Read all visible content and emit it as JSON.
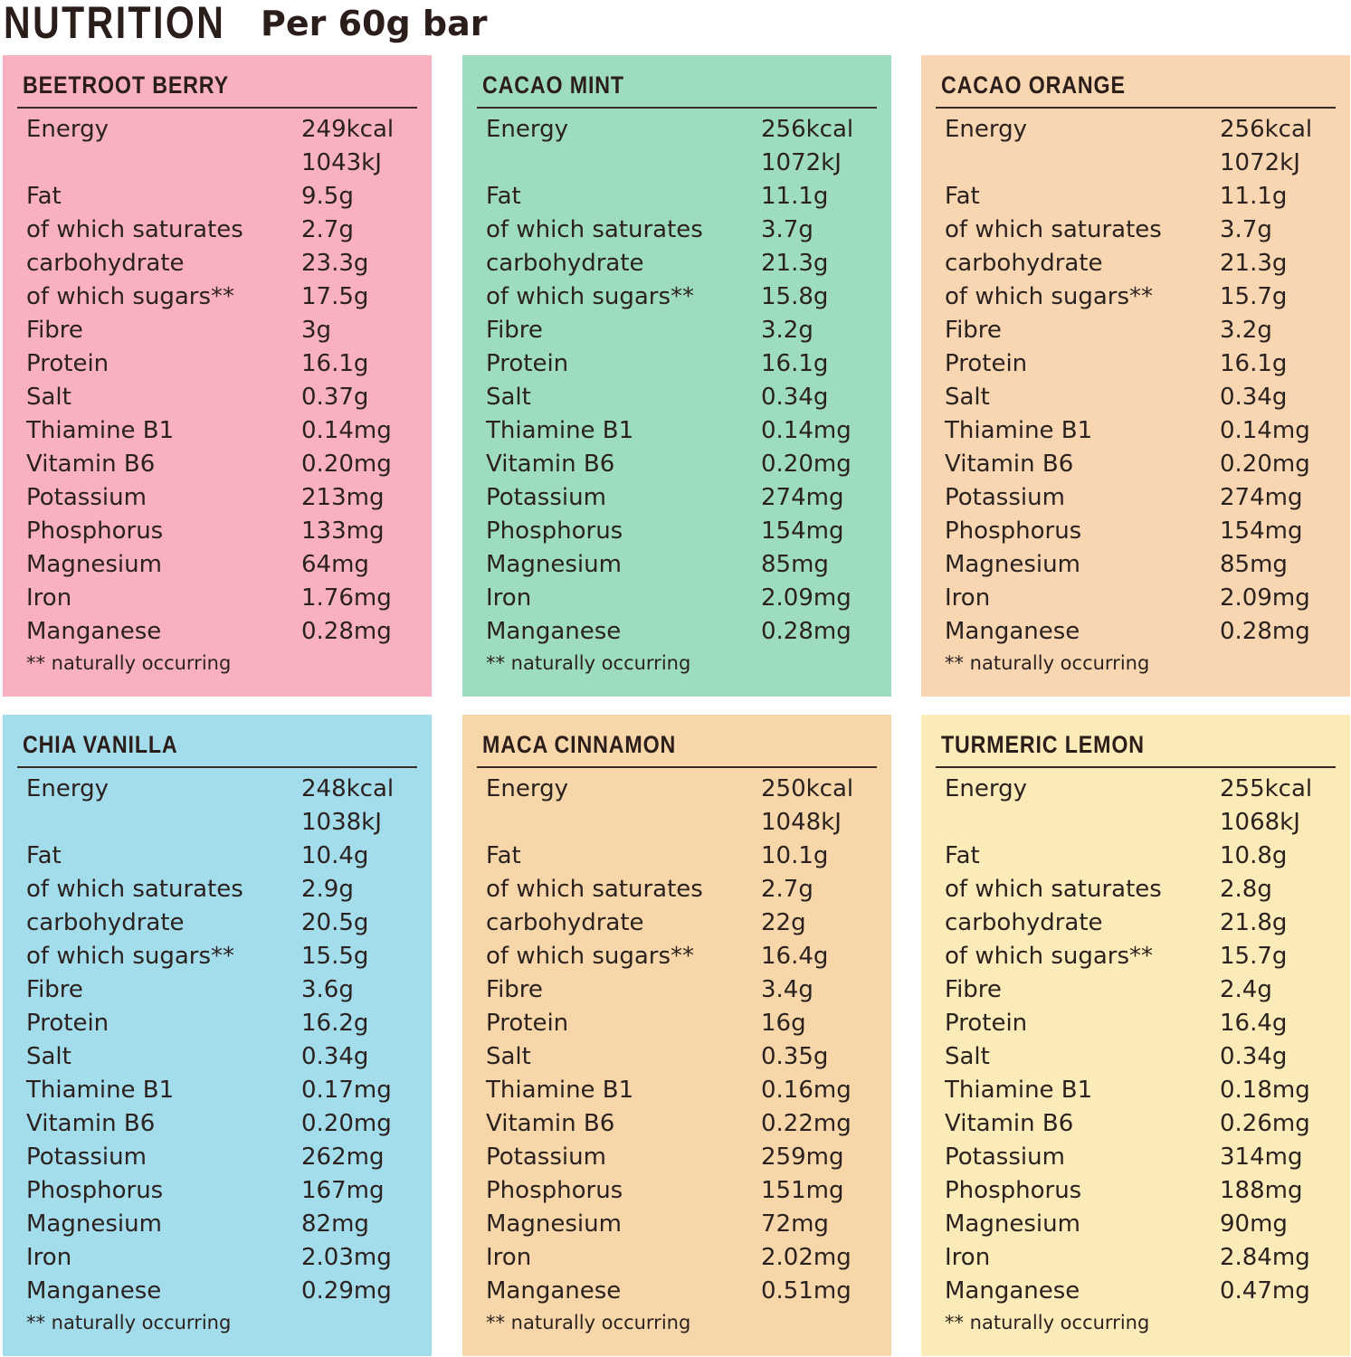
{
  "header": {
    "title": "NUTRITION",
    "subtitle": "Per 60g bar"
  },
  "panels": [
    {
      "name": "BEETROOT BERRY",
      "color": "#f9b1c0",
      "energy_kcal": "249kcal",
      "energy_kj": "1043kJ",
      "rows": [
        {
          "label": "Fat",
          "value": "9.5g"
        },
        {
          "label": "of which saturates",
          "value": "2.7g"
        },
        {
          "label": "carbohydrate",
          "value": "23.3g"
        },
        {
          "label": "of which sugars**",
          "value": "17.5g"
        },
        {
          "label": "Fibre",
          "value": "3g"
        },
        {
          "label": "Protein",
          "value": "16.1g"
        },
        {
          "label": "Salt",
          "value": "0.37g"
        },
        {
          "label": "Thiamine B1",
          "value": "0.14mg"
        },
        {
          "label": "Vitamin B6",
          "value": "0.20mg"
        },
        {
          "label": "Potassium",
          "value": "213mg"
        },
        {
          "label": "Phosphorus",
          "value": "133mg"
        },
        {
          "label": "Magnesium",
          "value": "64mg"
        },
        {
          "label": "Iron",
          "value": "1.76mg"
        },
        {
          "label": "Manganese",
          "value": "0.28mg"
        }
      ],
      "note": "** naturally occurring"
    },
    {
      "name": "CACAO MINT",
      "color": "#9edcc0",
      "energy_kcal": "256kcal",
      "energy_kj": "1072kJ",
      "rows": [
        {
          "label": "Fat",
          "value": "11.1g"
        },
        {
          "label": "of which saturates",
          "value": "3.7g"
        },
        {
          "label": "carbohydrate",
          "value": "21.3g"
        },
        {
          "label": "of which sugars**",
          "value": "15.8g"
        },
        {
          "label": "Fibre",
          "value": "3.2g"
        },
        {
          "label": "Protein",
          "value": "16.1g"
        },
        {
          "label": "Salt",
          "value": "0.34g"
        },
        {
          "label": "Thiamine B1",
          "value": "0.14mg"
        },
        {
          "label": "Vitamin B6",
          "value": "0.20mg"
        },
        {
          "label": "Potassium",
          "value": "274mg"
        },
        {
          "label": "Phosphorus",
          "value": "154mg"
        },
        {
          "label": "Magnesium",
          "value": "85mg"
        },
        {
          "label": "Iron",
          "value": "2.09mg"
        },
        {
          "label": "Manganese",
          "value": "0.28mg"
        }
      ],
      "note": "** naturally occurring"
    },
    {
      "name": "CACAO ORANGE",
      "color": "#f7d6b1",
      "energy_kcal": "256kcal",
      "energy_kj": "1072kJ",
      "rows": [
        {
          "label": "Fat",
          "value": "11.1g"
        },
        {
          "label": "of which saturates",
          "value": "3.7g"
        },
        {
          "label": "carbohydrate",
          "value": "21.3g"
        },
        {
          "label": "of which sugars**",
          "value": "15.7g"
        },
        {
          "label": "Fibre",
          "value": "3.2g"
        },
        {
          "label": "Protein",
          "value": "16.1g"
        },
        {
          "label": "Salt",
          "value": "0.34g"
        },
        {
          "label": "Thiamine B1",
          "value": "0.14mg"
        },
        {
          "label": "Vitamin B6",
          "value": "0.20mg"
        },
        {
          "label": "Potassium",
          "value": "274mg"
        },
        {
          "label": "Phosphorus",
          "value": "154mg"
        },
        {
          "label": "Magnesium",
          "value": "85mg"
        },
        {
          "label": "Iron",
          "value": "2.09mg"
        },
        {
          "label": "Manganese",
          "value": "0.28mg"
        }
      ],
      "note": "** naturally occurring"
    },
    {
      "name": "CHIA VANILLA",
      "color": "#a3dceb",
      "energy_kcal": "248kcal",
      "energy_kj": "1038kJ",
      "rows": [
        {
          "label": "Fat",
          "value": "10.4g"
        },
        {
          "label": "of which saturates",
          "value": "2.9g"
        },
        {
          "label": "carbohydrate",
          "value": "20.5g"
        },
        {
          "label": "of which sugars**",
          "value": "15.5g"
        },
        {
          "label": "Fibre",
          "value": "3.6g"
        },
        {
          "label": "Protein",
          "value": "16.2g"
        },
        {
          "label": "Salt",
          "value": "0.34g"
        },
        {
          "label": "Thiamine B1",
          "value": "0.17mg"
        },
        {
          "label": "Vitamin B6",
          "value": "0.20mg"
        },
        {
          "label": "Potassium",
          "value": "262mg"
        },
        {
          "label": "Phosphorus",
          "value": "167mg"
        },
        {
          "label": "Magnesium",
          "value": "82mg"
        },
        {
          "label": "Iron",
          "value": "2.03mg"
        },
        {
          "label": "Manganese",
          "value": "0.29mg"
        }
      ],
      "note": "** naturally occurring"
    },
    {
      "name": "MACA CINNAMON",
      "color": "#f7d7a9",
      "energy_kcal": "250kcal",
      "energy_kj": "1048kJ",
      "rows": [
        {
          "label": "Fat",
          "value": "10.1g"
        },
        {
          "label": "of which saturates",
          "value": "2.7g"
        },
        {
          "label": "carbohydrate",
          "value": "22g"
        },
        {
          "label": "of which sugars**",
          "value": "16.4g"
        },
        {
          "label": "Fibre",
          "value": "3.4g"
        },
        {
          "label": "Protein",
          "value": "16g"
        },
        {
          "label": "Salt",
          "value": "0.35g"
        },
        {
          "label": "Thiamine B1",
          "value": "0.16mg"
        },
        {
          "label": "Vitamin B6",
          "value": "0.22mg"
        },
        {
          "label": "Potassium",
          "value": "259mg"
        },
        {
          "label": "Phosphorus",
          "value": "151mg"
        },
        {
          "label": "Magnesium",
          "value": "72mg"
        },
        {
          "label": "Iron",
          "value": "2.02mg"
        },
        {
          "label": "Manganese",
          "value": "0.51mg"
        }
      ],
      "note": "** naturally occurring"
    },
    {
      "name": "TURMERIC LEMON",
      "color": "#fbebb8",
      "energy_kcal": "255kcal",
      "energy_kj": "1068kJ",
      "rows": [
        {
          "label": "Fat",
          "value": "10.8g"
        },
        {
          "label": "of which saturates",
          "value": "2.8g"
        },
        {
          "label": "carbohydrate",
          "value": "21.8g"
        },
        {
          "label": "of which sugars**",
          "value": "15.7g"
        },
        {
          "label": "Fibre",
          "value": "2.4g"
        },
        {
          "label": "Protein",
          "value": "16.4g"
        },
        {
          "label": "Salt",
          "value": "0.34g"
        },
        {
          "label": "Thiamine B1",
          "value": "0.18mg"
        },
        {
          "label": "Vitamin B6",
          "value": "0.26mg"
        },
        {
          "label": "Potassium",
          "value": "314mg"
        },
        {
          "label": "Phosphorus",
          "value": "188mg"
        },
        {
          "label": "Magnesium",
          "value": "90mg"
        },
        {
          "label": "Iron",
          "value": "2.84mg"
        },
        {
          "label": "Manganese",
          "value": "0.47mg"
        }
      ],
      "note": "** naturally occurring"
    }
  ],
  "energy_label": "Energy"
}
